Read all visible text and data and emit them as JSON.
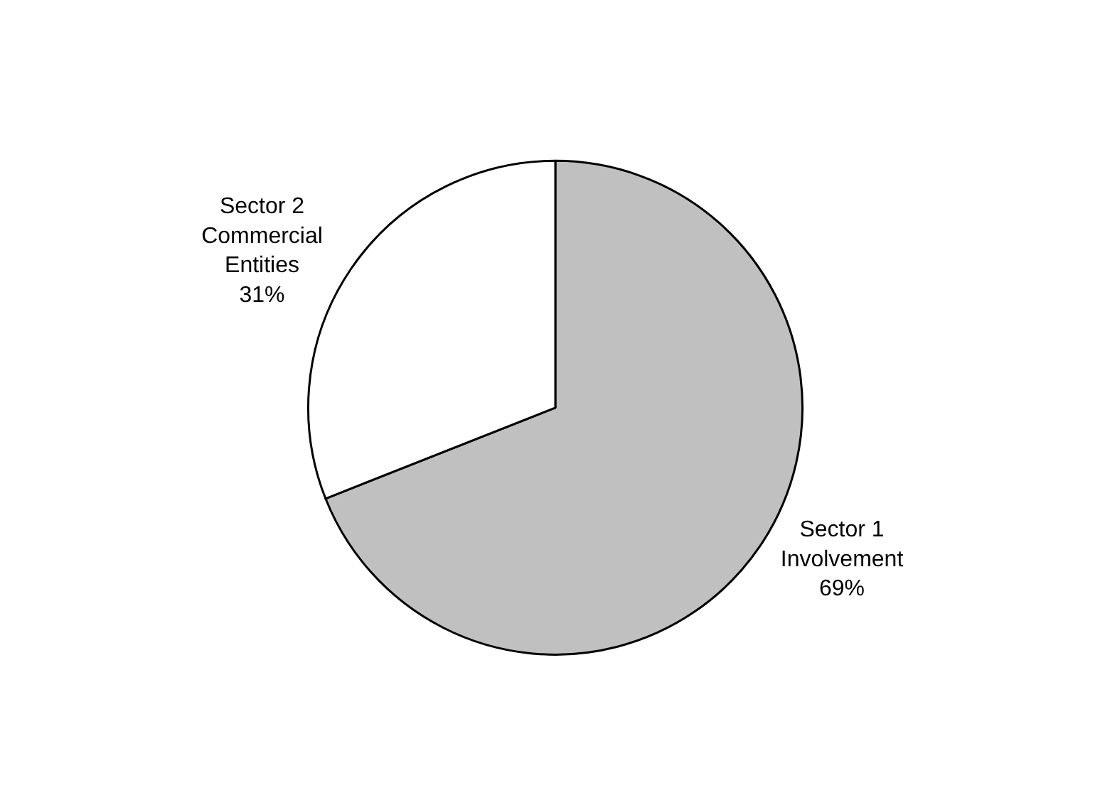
{
  "chart_data": {
    "type": "pie",
    "categories": [
      "Sector 1 Involvement",
      "Sector 2 Commercial Entities"
    ],
    "values": [
      69,
      31
    ],
    "colors": [
      "#c0c0c0",
      "#ffffff"
    ],
    "value_labels": [
      "69%",
      "31%"
    ],
    "legend": false
  }
}
